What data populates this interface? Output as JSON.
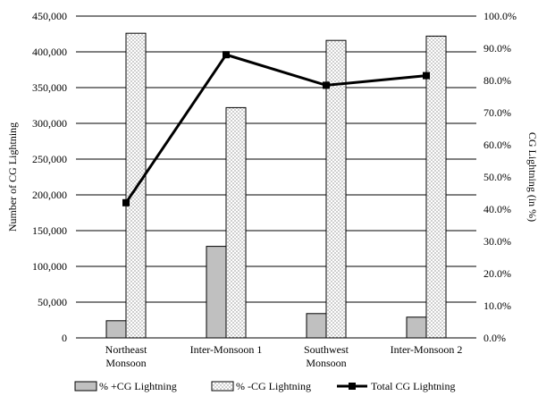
{
  "chart_data": {
    "type": "bar",
    "categories": [
      [
        "Northeast",
        "Monsoon"
      ],
      [
        "Inter-Monsoon 1"
      ],
      [
        "Southwest",
        "Monsoon"
      ],
      [
        "Inter-Monsoon 2"
      ]
    ],
    "series": [
      {
        "name": "% +CG Lightning",
        "axis": "left",
        "kind": "bar",
        "color": "#c0c0c0",
        "values": [
          24000,
          128000,
          34000,
          29000
        ]
      },
      {
        "name": "% -CG Lightning",
        "axis": "left",
        "kind": "bar",
        "pattern": "dotted",
        "color": "#ffffff",
        "values": [
          426000,
          322000,
          416000,
          422000
        ]
      },
      {
        "name": "Total CG Lightning",
        "axis": "right",
        "kind": "line",
        "color": "#000000",
        "values": [
          42.0,
          88.0,
          78.5,
          81.5
        ]
      }
    ],
    "y_left": {
      "label": "Number of CG Lightning",
      "range": [
        0,
        450000
      ],
      "ticks": [
        "0",
        "50,000",
        "100,000",
        "150,000",
        "200,000",
        "250,000",
        "300,000",
        "350,000",
        "400,000",
        "450,000"
      ]
    },
    "y_right": {
      "label": "CG Lightning (in %)",
      "range": [
        0,
        100
      ],
      "ticks": [
        "0.0%",
        "10.0%",
        "20.0%",
        "30.0%",
        "40.0%",
        "50.0%",
        "60.0%",
        "70.0%",
        "80.0%",
        "90.0%",
        "100.0%"
      ]
    },
    "grid": true,
    "legend": {
      "placement": "bottom",
      "entries": [
        "% +CG Lightning",
        "% -CG Lightning",
        "Total CG Lightning"
      ]
    }
  }
}
